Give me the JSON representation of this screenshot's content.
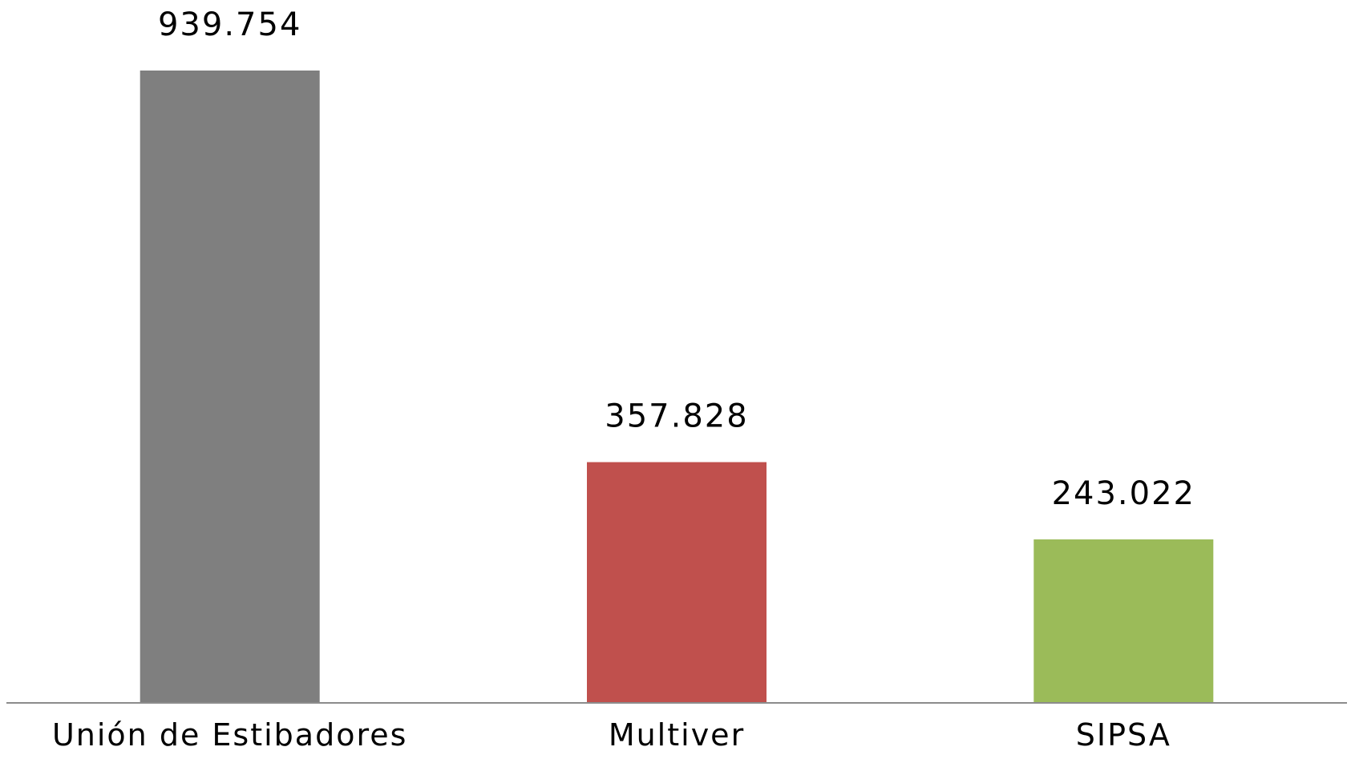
{
  "chart_data": {
    "type": "bar",
    "categories": [
      "Unión de Estibadores",
      "Multiver",
      "SIPSA"
    ],
    "values": [
      939754,
      357828,
      243022
    ],
    "value_labels": [
      "939.754",
      "357.828",
      "243.022"
    ],
    "colors": [
      "#7f7f7f",
      "#c0504d",
      "#9bbb59"
    ],
    "title": "",
    "xlabel": "",
    "ylabel": "",
    "ylim": [
      0,
      939754
    ],
    "grid": false,
    "legend": "none"
  }
}
